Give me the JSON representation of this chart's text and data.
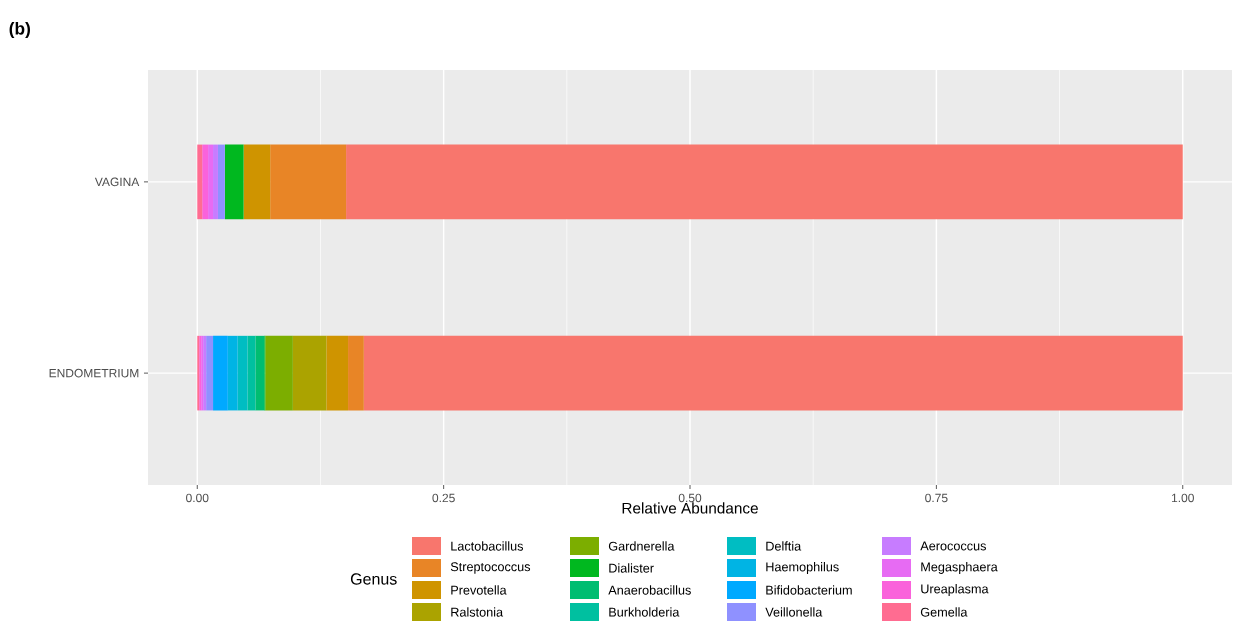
{
  "chart_data": {
    "type": "bar",
    "orientation": "horizontal",
    "stacked": true,
    "title": "(b)",
    "xlabel": "Relative Abundance",
    "legend_title": "Genus",
    "legend": "bottom",
    "grid": true,
    "categories": [
      "VAGINA",
      "ENDOMETRIUM"
    ],
    "xlim": [
      -0.05,
      1.05
    ],
    "xticks": [
      {
        "value": 0,
        "label": "0.00"
      },
      {
        "value": 0.25,
        "label": "0.25"
      },
      {
        "value": 0.5,
        "label": "0.50"
      },
      {
        "value": 0.75,
        "label": "0.75"
      },
      {
        "value": 1,
        "label": "1.00"
      }
    ],
    "series": [
      {
        "name": "Gemella",
        "color": "#FF6C91",
        "values": [
          0.005,
          0.002
        ]
      },
      {
        "name": "Ureaplasma",
        "color": "#FA62DB",
        "values": [
          0.006,
          0.002
        ]
      },
      {
        "name": "Megasphaera",
        "color": "#E76BF3",
        "values": [
          0.005,
          0.002
        ]
      },
      {
        "name": "Aerococcus",
        "color": "#C77CFF",
        "values": [
          0.005,
          0.003
        ]
      },
      {
        "name": "Veillonella",
        "color": "#8F91FF",
        "values": [
          0.007,
          0.007
        ]
      },
      {
        "name": "Bifidobacterium",
        "color": "#00A9FF",
        "values": [
          0,
          0.015
        ]
      },
      {
        "name": "Haemophilus",
        "color": "#00B4E4",
        "values": [
          0,
          0.01
        ]
      },
      {
        "name": "Delftia",
        "color": "#00BDC2",
        "values": [
          0,
          0.01
        ]
      },
      {
        "name": "Burkholderia",
        "color": "#00C0A0",
        "values": [
          0,
          0.008
        ]
      },
      {
        "name": "Anaerobacillus",
        "color": "#00BD71",
        "values": [
          0,
          0.009
        ]
      },
      {
        "name": "Dialister",
        "color": "#00B81F",
        "values": [
          0.019,
          0.001
        ]
      },
      {
        "name": "Gardnerella",
        "color": "#7CAE00",
        "values": [
          0,
          0.028
        ]
      },
      {
        "name": "Ralstonia",
        "color": "#ABA300",
        "values": [
          0,
          0.034
        ]
      },
      {
        "name": "Prevotella",
        "color": "#CF9400",
        "values": [
          0.027,
          0.022
        ]
      },
      {
        "name": "Streptococcus",
        "color": "#E88526",
        "values": [
          0.077,
          0.016
        ]
      },
      {
        "name": "Lactobacillus",
        "color": "#F8766D",
        "values": [
          0.849,
          0.831
        ]
      }
    ]
  }
}
